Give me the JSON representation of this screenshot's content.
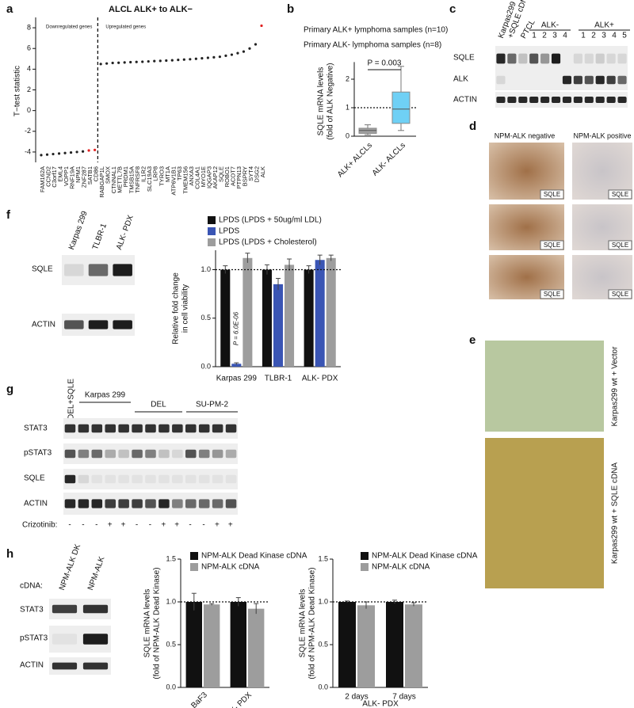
{
  "panel_labels": [
    "a",
    "b",
    "c",
    "d",
    "e",
    "f",
    "g",
    "h"
  ],
  "chart_data": [
    {
      "type": "scatter",
      "title": "ALCL ALK+ to ALK−",
      "ylabel": "T−test statistic",
      "annotations": [
        "Downregulated genes",
        "Upregulated genes"
      ],
      "categories": [
        "FAM162A",
        "CCND2",
        "C3orf17",
        "EML4",
        "VOPP1",
        "RNF19A",
        "NPM1",
        "ZNF287",
        "SATB1",
        "CD86",
        "RABGAP1L",
        "SMOX",
        "CTNNAL1",
        "METTL7B",
        "PRDM1",
        "TMSB15A",
        "TNFRSF8",
        "IL1R2",
        "SLC19A3",
        "LRP8",
        "TYRO3",
        "MT1A",
        "ATP6V1B1",
        "TP63",
        "TMEM156",
        "ANXA3",
        "COL4A1",
        "MYO1E",
        "IQGAP3",
        "AKAP12",
        "SQLE",
        "ROBO1",
        "ACOT7",
        "PTPN13",
        "BSPRY",
        "SYT4",
        "DSG2",
        "ALK"
      ],
      "values": [
        -4.3,
        -4.25,
        -4.2,
        -4.15,
        -4.1,
        -4.05,
        -4.0,
        -3.95,
        -3.85,
        -3.8,
        4.5,
        4.55,
        4.6,
        4.62,
        4.65,
        4.68,
        4.7,
        4.72,
        4.75,
        4.78,
        4.8,
        4.83,
        4.86,
        4.9,
        4.93,
        4.96,
        5.0,
        5.05,
        5.1,
        5.15,
        5.2,
        5.3,
        5.4,
        5.55,
        5.7,
        6.0,
        6.4,
        8.2
      ],
      "point_colors": [
        "#222",
        "#222",
        "#222",
        "#222",
        "#222",
        "#222",
        "#222",
        "#222",
        "#e02020",
        "#e02020",
        "#222",
        "#222",
        "#222",
        "#222",
        "#222",
        "#222",
        "#222",
        "#222",
        "#222",
        "#222",
        "#222",
        "#222",
        "#222",
        "#222",
        "#222",
        "#222",
        "#222",
        "#222",
        "#222",
        "#222",
        "#222",
        "#222",
        "#222",
        "#222",
        "#222",
        "#222",
        "#222",
        "#e02020"
      ],
      "split_after": 9,
      "ylim": [
        -5,
        9
      ],
      "yticks": [
        -4,
        -2,
        0,
        2,
        4,
        6,
        8
      ]
    },
    {
      "type": "box",
      "subtitle": [
        "Primary ALK+ lymphoma samples (n=10)",
        "Primary ALK- lymphoma samples (n=8)"
      ],
      "ylabel": [
        "SQLE mRNA levels",
        "(fold of ALK Negative)"
      ],
      "categories": [
        "ALK+ ALCLs",
        "ALK- ALCLs"
      ],
      "boxes": [
        {
          "min": 0.05,
          "q1": 0.1,
          "median": 0.2,
          "q3": 0.28,
          "max": 0.4,
          "color": "#a0a0a0"
        },
        {
          "min": 0.2,
          "q1": 0.45,
          "median": 0.95,
          "q3": 1.55,
          "max": 2.45,
          "color": "#6fd0f5"
        }
      ],
      "annotation": "P = 0.003",
      "reference_line": 1,
      "ylim": [
        0,
        2.6
      ],
      "yticks": [
        0,
        1,
        2
      ]
    },
    {
      "type": "bar",
      "ylabel": [
        "Relative fold change",
        "in cell viability"
      ],
      "categories": [
        "Karpas 299",
        "TLBR-1",
        "ALK- PDX"
      ],
      "series": [
        {
          "name": "LPDS (LPDS + 50ug/ml LDL)",
          "color": "#111111",
          "values": [
            1.0,
            1.0,
            1.0
          ],
          "errors": [
            0.04,
            0.05,
            0.04
          ]
        },
        {
          "name": "LPDS",
          "color": "#3a55b4",
          "values": [
            0.03,
            0.85,
            1.1
          ],
          "errors": [
            0.01,
            0.06,
            0.05
          ]
        },
        {
          "name": "LPDS (LPDS + Cholesterol)",
          "color": "#9d9d9d",
          "values": [
            1.12,
            1.05,
            1.12
          ],
          "errors": [
            0.05,
            0.06,
            0.03
          ]
        }
      ],
      "annotation": "P = 6.0E-06",
      "reference_line": 1,
      "ylim": [
        0,
        1.2
      ],
      "yticks": [
        {
          "value": 0,
          "label": "0.0"
        },
        {
          "value": 0.5,
          "label": "0.5"
        },
        {
          "value": 1,
          "label": "1.0"
        }
      ]
    },
    {
      "type": "bar",
      "ylabel": [
        "SQLE mRNA levels",
        "(fold of NPM-ALK Dead Kinase)"
      ],
      "categories": [
        "BaF3",
        "ALK- PDX"
      ],
      "series": [
        {
          "name": "NPM-ALK Dead Kinase cDNA",
          "color": "#111111",
          "values": [
            1.0,
            1.0
          ],
          "errors": [
            0.1,
            0.05
          ]
        },
        {
          "name": "NPM-ALK cDNA",
          "color": "#9d9d9d",
          "values": [
            0.97,
            0.92
          ],
          "errors": [
            0.01,
            0.06
          ]
        }
      ],
      "reference_line": 1,
      "ylim": [
        0,
        1.5
      ],
      "yticks": [
        {
          "value": 0,
          "label": "0.0"
        },
        {
          "value": 0.5,
          "label": "0.5"
        },
        {
          "value": 1,
          "label": "1.0"
        },
        {
          "value": 1.5,
          "label": "1.5"
        }
      ]
    },
    {
      "type": "bar",
      "ylabel": [
        "SQLE mRNA levels",
        "(fold of NPM-ALK Dead Kinase)"
      ],
      "xlabel": "ALK- PDX",
      "categories": [
        "2 days",
        "7 days"
      ],
      "series": [
        {
          "name": "NPM-ALK Dead Kinase cDNA",
          "color": "#111111",
          "values": [
            1.0,
            1.0
          ],
          "errors": [
            0.01,
            0.02
          ]
        },
        {
          "name": "NPM-ALK cDNA",
          "color": "#9d9d9d",
          "values": [
            0.96,
            0.97
          ],
          "errors": [
            0.04,
            0.02
          ]
        }
      ],
      "reference_line": 1,
      "ylim": [
        0,
        1.5
      ],
      "yticks": [
        {
          "value": 0,
          "label": "0.0"
        },
        {
          "value": 0.5,
          "label": "0.5"
        },
        {
          "value": 1,
          "label": "1.0"
        },
        {
          "value": 1.5,
          "label": "1.5"
        }
      ]
    }
  ],
  "panel_c": {
    "lane_header": [
      "Karpas299",
      "+SQLE cDNA"
    ],
    "ptcl": "PTCL",
    "groups": [
      {
        "label": "ALK-",
        "lanes": [
          "1",
          "2",
          "3",
          "4"
        ]
      },
      {
        "label": "ALK+",
        "lanes": [
          "1",
          "2",
          "3",
          "4",
          "5"
        ]
      }
    ],
    "rows": [
      "SQLE",
      "ALK",
      "ACTIN"
    ]
  },
  "panel_d": {
    "headers": [
      "NPM-ALK negative",
      "NPM-ALK positive"
    ],
    "tags": [
      "SQLE",
      "SQLE",
      "SQLE",
      "SQLE",
      "SQLE",
      "SQLE"
    ]
  },
  "panel_e": {
    "labels": [
      "Karpas299 wt + Vector",
      "Karpas299 wt + SQLE cDNA"
    ]
  },
  "panel_f_blot": {
    "lanes": [
      "Karpas 299",
      "TLBR-1",
      "ALK- PDX"
    ],
    "rows": [
      "SQLE",
      "ACTIN"
    ]
  },
  "panel_g": {
    "first_lane": "DEL+SQLE",
    "groups": [
      "Karpas 299",
      "DEL",
      "SU-PM-2"
    ],
    "rows": [
      "STAT3",
      "pSTAT3",
      "SQLE",
      "ACTIN"
    ],
    "treatment_label": "Crizotinib:",
    "treatment": [
      "-",
      "-",
      "-",
      "+",
      "+",
      "-",
      "-",
      "+",
      "+",
      "-",
      "-",
      "+",
      "+"
    ]
  },
  "panel_h_blot": {
    "row_label": "cDNA:",
    "lanes": [
      "NPM-ALK DK",
      "NPM-ALK"
    ],
    "rows": [
      "STAT3",
      "pSTAT3",
      "ACTIN"
    ]
  }
}
